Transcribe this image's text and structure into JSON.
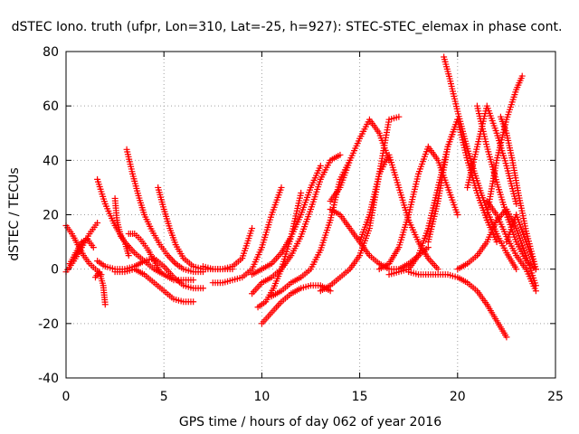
{
  "chart_data": {
    "type": "scatter",
    "title": "dSTEC Iono. truth (ufpr, Lon=310, Lat=-25, h=927): STEC-STEC_elemax in phase cont.",
    "xlabel": "GPS time / hours of day 062 of year 2016",
    "ylabel": "dSTEC  / TECUs",
    "xlim": [
      0,
      25
    ],
    "ylim": [
      -40,
      80
    ],
    "xticks": [
      0,
      5,
      10,
      15,
      20,
      25
    ],
    "yticks": [
      -40,
      -20,
      0,
      20,
      40,
      60,
      80
    ],
    "grid": true,
    "legend": "none",
    "marker": "+",
    "color": "#ff0000",
    "series": [
      {
        "x": [
          0.0,
          0.3,
          0.6,
          0.9,
          1.2,
          1.5,
          1.8
        ],
        "y": [
          16,
          13,
          9,
          5,
          2,
          0,
          -2
        ]
      },
      {
        "x": [
          0.0,
          0.4,
          0.8,
          1.2,
          1.6
        ],
        "y": [
          -1,
          3,
          8,
          13,
          17
        ]
      },
      {
        "x": [
          0.2,
          0.5,
          0.8,
          1.1,
          1.4
        ],
        "y": [
          2,
          6,
          10,
          11,
          8
        ]
      },
      {
        "x": [
          1.5,
          1.7,
          1.9,
          2.0
        ],
        "y": [
          -3,
          -1,
          -6,
          -13
        ]
      },
      {
        "x": [
          1.6,
          2.0,
          2.5,
          3.0,
          3.5,
          4.0,
          4.5,
          5.0,
          5.5,
          6.0,
          6.5,
          7.0
        ],
        "y": [
          3,
          1,
          0,
          0,
          1,
          3,
          4,
          1,
          -3,
          -6,
          -7,
          -7
        ]
      },
      {
        "x": [
          1.6,
          2.0,
          2.5,
          3.0,
          3.5,
          4.0,
          4.5,
          5.0,
          5.5,
          6.0,
          6.5
        ],
        "y": [
          33,
          24,
          16,
          10,
          6,
          3,
          0,
          -2,
          -4,
          -4,
          -4
        ]
      },
      {
        "x": [
          2.5,
          2.6,
          2.8,
          3.0,
          3.2
        ],
        "y": [
          26,
          18,
          12,
          10,
          5
        ]
      },
      {
        "x": [
          3.1,
          3.4,
          3.7,
          4.0,
          4.4,
          4.8,
          5.2,
          5.6,
          6.0,
          6.5,
          7.0
        ],
        "y": [
          44,
          35,
          27,
          20,
          14,
          9,
          5,
          2,
          0,
          -1,
          -1
        ]
      },
      {
        "x": [
          3.2,
          3.5,
          3.8,
          4.2,
          4.5,
          4.8
        ],
        "y": [
          13,
          13,
          11,
          7,
          3,
          -1
        ]
      },
      {
        "x": [
          2.5,
          3.0,
          3.5,
          4.0,
          4.5,
          5.0,
          5.5,
          6.0,
          6.5
        ],
        "y": [
          -1,
          -1,
          0,
          -2,
          -5,
          -8,
          -11,
          -12,
          -12
        ]
      },
      {
        "x": [
          4.7,
          5.0,
          5.3,
          5.6,
          6.0,
          6.5,
          7.0,
          7.5,
          8.0,
          8.5
        ],
        "y": [
          30,
          22,
          15,
          9,
          4,
          1,
          0,
          0,
          0,
          0
        ]
      },
      {
        "x": [
          7.0,
          7.5,
          8.0,
          8.5,
          9.0,
          9.5
        ],
        "y": [
          1,
          0,
          0,
          1,
          4,
          15
        ]
      },
      {
        "x": [
          7.5,
          8.0,
          8.5,
          9.0,
          9.5,
          10.0,
          10.5,
          11.0
        ],
        "y": [
          -5,
          -5,
          -4,
          -3,
          0,
          8,
          20,
          30
        ]
      },
      {
        "x": [
          9.8,
          10.2,
          10.6,
          11.0,
          11.5,
          12.0
        ],
        "y": [
          -14,
          -12,
          -7,
          0,
          12,
          28
        ]
      },
      {
        "x": [
          9.5,
          10.0,
          10.5,
          11.0,
          11.5,
          12.0,
          12.5,
          13.0,
          13.5,
          14.0
        ],
        "y": [
          -9,
          -5,
          -3,
          0,
          5,
          12,
          22,
          33,
          40,
          42
        ]
      },
      {
        "x": [
          9.5,
          10.0,
          10.5,
          11.0,
          11.5,
          12.0,
          12.5,
          13.0
        ],
        "y": [
          -2,
          0,
          2,
          6,
          12,
          20,
          30,
          38
        ]
      },
      {
        "x": [
          10.0,
          10.5,
          11.0,
          11.5,
          12.0,
          12.5,
          13.0,
          13.5
        ],
        "y": [
          -20,
          -16,
          -12,
          -9,
          -7,
          -6,
          -6,
          -8
        ]
      },
      {
        "x": [
          10.5,
          11.0,
          11.5,
          12.0,
          12.5,
          13.0,
          13.5,
          14.0,
          14.5
        ],
        "y": [
          -10,
          -8,
          -5,
          -3,
          0,
          7,
          18,
          33,
          40
        ]
      },
      {
        "x": [
          13.0,
          13.5,
          14.0,
          14.5,
          15.0,
          15.5,
          16.0,
          16.5,
          17.0
        ],
        "y": [
          -8,
          -6,
          -3,
          0,
          5,
          15,
          35,
          55,
          56
        ]
      },
      {
        "x": [
          13.5,
          14.0,
          14.5,
          15.0,
          15.5,
          16.0,
          16.5
        ],
        "y": [
          25,
          30,
          40,
          48,
          55,
          50,
          40
        ]
      },
      {
        "x": [
          13.5,
          14.0,
          14.5,
          15.0,
          15.5,
          16.0,
          16.5,
          17.0,
          17.5,
          18.0,
          18.5
        ],
        "y": [
          22,
          20,
          15,
          10,
          5,
          2,
          0,
          0,
          2,
          5,
          8
        ]
      },
      {
        "x": [
          15.0,
          15.5,
          16.0,
          16.5,
          17.0,
          17.5,
          18.0,
          18.5,
          19.0
        ],
        "y": [
          10,
          20,
          35,
          42,
          30,
          18,
          10,
          4,
          0
        ]
      },
      {
        "x": [
          16.0,
          16.5,
          17.0,
          17.5,
          18.0,
          18.5,
          19.0,
          19.5,
          20.0
        ],
        "y": [
          0,
          2,
          8,
          20,
          35,
          45,
          40,
          30,
          20
        ]
      },
      {
        "x": [
          16.5,
          17.0,
          17.5,
          18.0,
          18.5,
          19.0,
          19.5,
          20.0
        ],
        "y": [
          -2,
          -1,
          0,
          5,
          15,
          30,
          45,
          55
        ]
      },
      {
        "x": [
          17.5,
          18.0,
          18.5,
          19.0,
          19.5,
          20.0,
          20.5,
          21.0,
          21.5,
          22.0,
          22.5
        ],
        "y": [
          -1,
          -2,
          -2,
          -2,
          -2,
          -3,
          -5,
          -8,
          -13,
          -19,
          -25
        ]
      },
      {
        "x": [
          19.3,
          19.6,
          20.0,
          20.4,
          20.8,
          21.2,
          21.6,
          22.0,
          22.5,
          23.0
        ],
        "y": [
          78,
          70,
          58,
          47,
          37,
          28,
          20,
          13,
          6,
          0
        ]
      },
      {
        "x": [
          18.5,
          19.0,
          19.5,
          20.0,
          20.5,
          21.0,
          21.5,
          22.0
        ],
        "y": [
          10,
          25,
          45,
          55,
          40,
          28,
          18,
          10
        ]
      },
      {
        "x": [
          21.0,
          21.5,
          22.0,
          22.5,
          23.0,
          23.5,
          24.0
        ],
        "y": [
          60,
          45,
          32,
          20,
          10,
          3,
          0
        ]
      },
      {
        "x": [
          21.5,
          22.0,
          22.5,
          23.0,
          23.3
        ],
        "y": [
          20,
          40,
          55,
          66,
          71
        ]
      },
      {
        "x": [
          20.0,
          20.5,
          21.0,
          21.5,
          22.0,
          22.5,
          23.0,
          23.5,
          24.0
        ],
        "y": [
          0,
          2,
          5,
          10,
          18,
          22,
          15,
          5,
          -6
        ]
      },
      {
        "x": [
          21.5,
          22.0,
          22.5,
          23.0,
          23.5,
          24.0
        ],
        "y": [
          25,
          20,
          12,
          5,
          0,
          -8
        ]
      },
      {
        "x": [
          22.2,
          22.5,
          22.8,
          23.1,
          23.5,
          24.0
        ],
        "y": [
          56,
          50,
          40,
          28,
          14,
          0
        ]
      },
      {
        "x": [
          22.5,
          23.0,
          23.5,
          24.0
        ],
        "y": [
          10,
          20,
          10,
          0
        ]
      },
      {
        "x": [
          20.5,
          21.0,
          21.5,
          22.0,
          22.5,
          23.0
        ],
        "y": [
          30,
          45,
          60,
          50,
          38,
          24
        ]
      }
    ]
  }
}
